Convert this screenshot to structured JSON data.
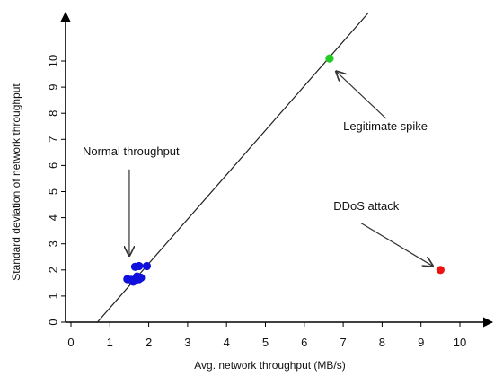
{
  "chart_data": {
    "type": "scatter",
    "title": "",
    "xlabel": "Avg. network throughput (MB/s)",
    "ylabel": "Standard deviation of network throughput",
    "xlim": [
      0,
      10
    ],
    "ylim": [
      0,
      10
    ],
    "x_ticks": [
      "0",
      "1",
      "2",
      "3",
      "4",
      "5",
      "6",
      "7",
      "8",
      "9",
      "10"
    ],
    "y_ticks": [
      "0",
      "1",
      "2",
      "3",
      "4",
      "5",
      "6",
      "7",
      "8",
      "9",
      "10"
    ],
    "grid": false,
    "legend": "none",
    "series": [
      {
        "color": "#1010dd",
        "points": [
          {
            "x": 1.45,
            "y": 1.65
          },
          {
            "x": 1.55,
            "y": 1.62
          },
          {
            "x": 1.6,
            "y": 1.55
          },
          {
            "x": 1.65,
            "y": 1.6
          },
          {
            "x": 1.7,
            "y": 1.75
          },
          {
            "x": 1.75,
            "y": 1.65
          },
          {
            "x": 1.8,
            "y": 1.7
          },
          {
            "x": 1.65,
            "y": 2.12
          },
          {
            "x": 1.75,
            "y": 2.15
          },
          {
            "x": 1.95,
            "y": 2.15
          }
        ]
      },
      {
        "color": "#22cc22",
        "points": [
          {
            "x": 6.65,
            "y": 10.1
          }
        ]
      },
      {
        "color": "#ee1111",
        "points": [
          {
            "x": 9.5,
            "y": 2.0
          }
        ]
      }
    ],
    "reference_line": {
      "color": "#222222",
      "from": {
        "x": 0.68,
        "y": 0
      },
      "to": {
        "x": 7.65,
        "y": 11.85
      }
    },
    "annotations": [
      {
        "text": "Normal throughput",
        "label_at": {
          "x": 0.3,
          "y": 6.4
        },
        "arrow_from": {
          "x": 1.5,
          "y": 5.85
        },
        "arrow_to": {
          "x": 1.5,
          "y": 2.55
        }
      },
      {
        "text": "Legitimate spike",
        "label_at": {
          "x": 7.0,
          "y": 7.35
        },
        "arrow_from": {
          "x": 8.1,
          "y": 7.8
        },
        "arrow_to": {
          "x": 6.82,
          "y": 9.6
        }
      },
      {
        "text": "DDoS attack",
        "label_at": {
          "x": 6.75,
          "y": 4.3
        },
        "arrow_from": {
          "x": 7.45,
          "y": 3.8
        },
        "arrow_to": {
          "x": 9.3,
          "y": 2.15
        }
      }
    ]
  }
}
